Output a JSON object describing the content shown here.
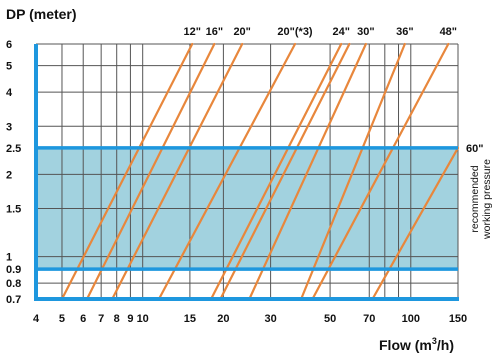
{
  "chart_data": {
    "type": "line",
    "ylabel": "DP (meter)",
    "xlabel": "Flow (m3/h)",
    "xlabel_main": "Flow (m",
    "xlabel_sup": "3",
    "xlabel_end": "/h)",
    "x_scale": "log",
    "y_scale": "log",
    "xlim": [
      4,
      150
    ],
    "ylim": [
      0.7,
      6
    ],
    "x_ticks": [
      4,
      5,
      6,
      7,
      8,
      9,
      10,
      15,
      20,
      30,
      50,
      70,
      80,
      90,
      100,
      150
    ],
    "x_tick_labels": [
      "4",
      "5",
      "6",
      "7",
      "8",
      "9",
      "10",
      "15",
      "20",
      "30",
      "50",
      "70",
      "",
      "",
      "100",
      "150"
    ],
    "y_ticks": [
      0.7,
      0.8,
      0.9,
      1,
      1.5,
      2,
      2.5,
      3,
      4,
      5,
      6
    ],
    "y_tick_labels": [
      "0.7",
      "0.8",
      "0.9",
      "1",
      "1.5",
      "2",
      "2.5",
      "3",
      "4",
      "5",
      "6"
    ],
    "grid": true,
    "recommended_band": {
      "ymin": 0.9,
      "ymax": 2.5,
      "label_line1": "recommended",
      "label_line2": "working pressure",
      "fill": "#a2d2df",
      "border": "#1e97de"
    },
    "axis_color": "#1e97de",
    "series_color": "#e8873c",
    "series": [
      {
        "name": "12\"",
        "x": [
          5.0,
          15.3
        ],
        "y": [
          0.7,
          6
        ]
      },
      {
        "name": "16\"",
        "x": [
          6.2,
          18.5
        ],
        "y": [
          0.7,
          6
        ]
      },
      {
        "name": "20\"",
        "x": [
          7.7,
          23.5
        ],
        "y": [
          0.7,
          6
        ]
      },
      {
        "name": "20\"(*3)",
        "x": [
          11.5,
          37.0
        ],
        "y": [
          0.7,
          6
        ]
      },
      {
        "name": "24\"",
        "x": [
          18.0,
          55.0
        ],
        "y": [
          0.7,
          6
        ]
      },
      {
        "name": "",
        "x": [
          19.5,
          59.0
        ],
        "y": [
          0.7,
          6
        ]
      },
      {
        "name": "30\"",
        "x": [
          25.0,
          68.0
        ],
        "y": [
          0.7,
          6
        ]
      },
      {
        "name": "36\"",
        "x": [
          39.0,
          95.0
        ],
        "y": [
          0.7,
          6
        ]
      },
      {
        "name": "48\"",
        "x": [
          43.0,
          138.0
        ],
        "y": [
          0.7,
          6
        ]
      },
      {
        "name": "60\"",
        "x": [
          72.0,
          150.0
        ],
        "y": [
          0.7,
          2.5
        ]
      }
    ]
  }
}
